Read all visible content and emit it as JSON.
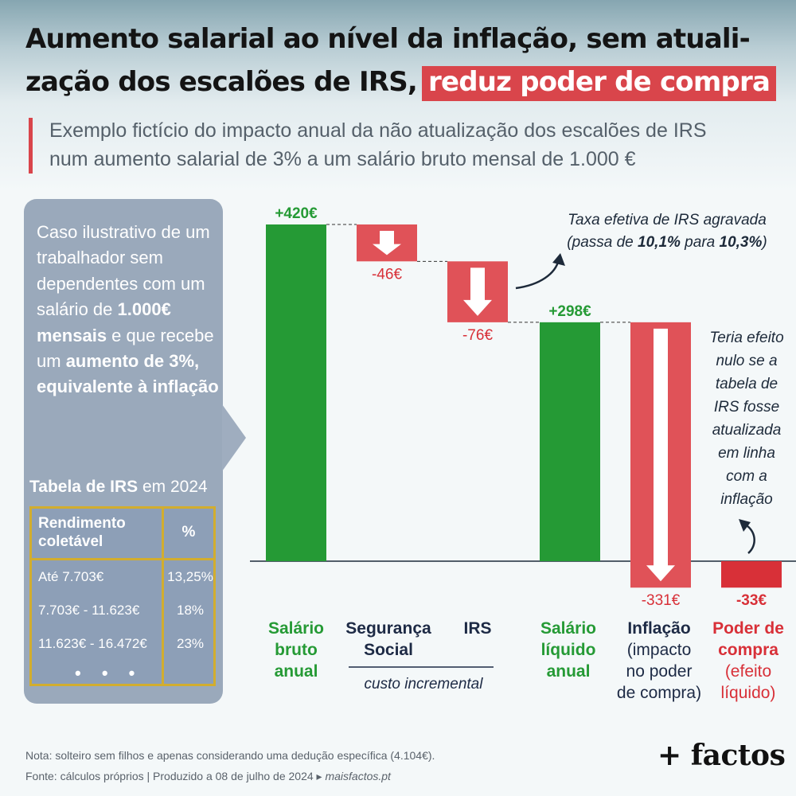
{
  "header": {
    "title_line1": "Aumento salarial ao nível da inflação, sem atuali-",
    "title_line2": "zação dos escalões de IRS,",
    "title_highlight": "reduz poder de compra",
    "subtitle_line1": "Exemplo fictício do impacto anual da não atualização dos escalões de IRS",
    "subtitle_line2": "num aumento salarial de 3% a um salário bruto mensal de 1.000 €"
  },
  "sidebar": {
    "text_1": "Caso ilustrativo de um trabalhador sem dependentes com um salário de ",
    "text_bold_1": "1.000€ mensais",
    "text_2": " e que recebe um ",
    "text_bold_2": "aumento de 3%, equivalente à inflação",
    "table_title_bold": "Tabela de IRS",
    "table_title_rest": " em 2024",
    "table": {
      "headers": [
        "Rendimento coletável",
        "%"
      ],
      "rows": [
        [
          "Até 7.703€",
          "13,25%"
        ],
        [
          "7.703€ - 11.623€",
          "18%"
        ],
        [
          "11.623€ - 16.472€",
          "23%"
        ]
      ],
      "more": "• • •"
    }
  },
  "chart_data": {
    "type": "waterfall",
    "steps": [
      {
        "label": "Salário bruto anual",
        "value": 420,
        "kind": "total",
        "data_label": "+420€",
        "color": "#259a35"
      },
      {
        "label": "Segurança Social",
        "value": -46,
        "kind": "delta",
        "data_label": "-46€",
        "color": "#e05258"
      },
      {
        "label": "IRS",
        "value": -76,
        "kind": "delta",
        "data_label": "-76€",
        "color": "#e05258"
      },
      {
        "label": "Salário líquido anual",
        "value": 298,
        "kind": "total",
        "data_label": "+298€",
        "color": "#259a35"
      },
      {
        "label": "Inflação (impacto no poder de compra)",
        "value": -331,
        "kind": "delta",
        "data_label": "-331€",
        "color": "#e05258"
      },
      {
        "label": "Poder de compra (efeito líquido)",
        "value": -33,
        "kind": "total",
        "data_label": "-33€",
        "color": "#d83038"
      }
    ],
    "category_labels": [
      {
        "lines": [
          "Salário",
          "bruto",
          "anual"
        ],
        "color": "#259a35"
      },
      {
        "lines": [
          "Segurança",
          "Social"
        ],
        "color": "#1d2a45"
      },
      {
        "lines": [
          "IRS"
        ],
        "color": "#1d2a45"
      },
      {
        "lines": [
          "Salário",
          "líquido",
          "anual"
        ],
        "color": "#259a35"
      },
      {
        "lines": [
          "Inflação",
          "(impacto",
          "no poder",
          "de compra)"
        ],
        "color": "#1d2a45"
      },
      {
        "lines": [
          "Poder de",
          "compra",
          "(efeito",
          "líquido)"
        ],
        "color": "#d83038"
      }
    ],
    "group_label": "custo incremental",
    "annotations": {
      "irs_line1": "Taxa efetiva de IRS agravada",
      "irs_line2_pre": "(passa de ",
      "irs_line2_b1": "10,1%",
      "irs_line2_mid": " para ",
      "irs_line2_b2": "10,3%",
      "irs_line2_post": ")",
      "inflation_note": [
        "Teria efeito",
        "nulo se a",
        "tabela de",
        "IRS fosse",
        "atualizada",
        "em linha",
        "com a",
        "inflação"
      ]
    },
    "colors": {
      "positive": "#259a35",
      "negative": "#e05258",
      "net": "#d83038",
      "arrow": "#ffffff"
    }
  },
  "footer": {
    "note": "Nota: solteiro sem filhos e apenas considerando uma dedução específica (4.104€).",
    "source_pre": "Fonte: cálculos próprios  |  Produzido a 08 de julho de 2024 ▸ ",
    "source_link": "maisfactos.pt",
    "logo": "+ factos"
  }
}
